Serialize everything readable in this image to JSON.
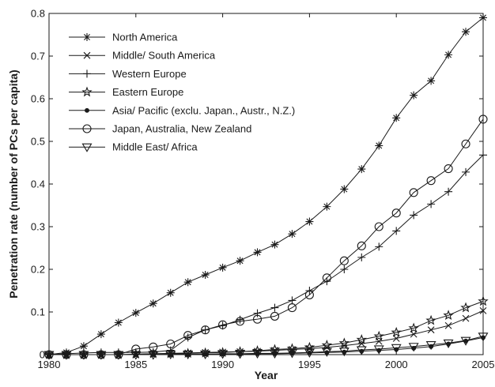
{
  "chart_data": {
    "type": "line",
    "title": "",
    "xlabel": "Year",
    "ylabel": "Penetration rate (number of PCs per capita)",
    "xlim": [
      1980,
      2005
    ],
    "ylim": [
      0,
      0.8
    ],
    "xticks": [
      "1980",
      "1985",
      "1990",
      "1995",
      "2000",
      "2005"
    ],
    "yticks": [
      "0",
      "0.1",
      "0.2",
      "0.3",
      "0.4",
      "0.5",
      "0.6",
      "0.7",
      "0.8"
    ],
    "grid": false,
    "legend_position": "top-left",
    "line_color": "#1a1a1a",
    "x": [
      1980,
      1981,
      1982,
      1983,
      1984,
      1985,
      1986,
      1987,
      1988,
      1989,
      1990,
      1991,
      1992,
      1993,
      1994,
      1995,
      1996,
      1997,
      1998,
      1999,
      2000,
      2001,
      2002,
      2003,
      2004,
      2005
    ],
    "series": [
      {
        "name": "North America",
        "marker": "asterisk",
        "values": [
          0,
          0.005,
          0.02,
          0.048,
          0.075,
          0.098,
          0.12,
          0.145,
          0.17,
          0.187,
          0.204,
          0.22,
          0.24,
          0.258,
          0.283,
          0.312,
          0.347,
          0.388,
          0.435,
          0.49,
          0.555,
          0.608,
          0.642,
          0.703,
          0.757,
          0.79
        ]
      },
      {
        "name": "Middle/ South America",
        "marker": "x",
        "values": [
          0,
          0,
          0,
          0,
          0,
          0.001,
          0.002,
          0.003,
          0.004,
          0.005,
          0.006,
          0.007,
          0.008,
          0.01,
          0.012,
          0.014,
          0.017,
          0.021,
          0.026,
          0.031,
          0.038,
          0.048,
          0.058,
          0.068,
          0.085,
          0.103
        ]
      },
      {
        "name": "Western Europe",
        "marker": "plus",
        "values": [
          0,
          0.002,
          0.004,
          0.005,
          0.005,
          0.005,
          0.006,
          0.01,
          0.04,
          0.058,
          0.068,
          0.082,
          0.097,
          0.11,
          0.127,
          0.15,
          0.172,
          0.2,
          0.228,
          0.253,
          0.29,
          0.327,
          0.353,
          0.382,
          0.428,
          0.468
        ]
      },
      {
        "name": "Eastern Europe",
        "marker": "star",
        "values": [
          0,
          0,
          0,
          0,
          0,
          0.001,
          0.002,
          0.002,
          0.003,
          0.004,
          0.005,
          0.007,
          0.009,
          0.012,
          0.014,
          0.017,
          0.022,
          0.027,
          0.035,
          0.043,
          0.052,
          0.062,
          0.08,
          0.092,
          0.11,
          0.125
        ]
      },
      {
        "name": "Asia/ Pacific (exclu. Japan., Austr., N.Z.)",
        "marker": "dot",
        "values": [
          0,
          0,
          0,
          0,
          0,
          0,
          0,
          0,
          0,
          0.001,
          0.001,
          0.001,
          0.002,
          0.002,
          0.003,
          0.004,
          0.005,
          0.006,
          0.008,
          0.01,
          0.012,
          0.015,
          0.019,
          0.025,
          0.032,
          0.04
        ]
      },
      {
        "name": "Japan, Australia, New Zealand",
        "marker": "circle",
        "values": [
          0,
          0,
          0,
          0,
          0,
          0.013,
          0.018,
          0.025,
          0.045,
          0.058,
          0.07,
          0.078,
          0.083,
          0.09,
          0.11,
          0.14,
          0.18,
          0.22,
          0.255,
          0.3,
          0.332,
          0.38,
          0.408,
          0.436,
          0.494,
          0.552
        ]
      },
      {
        "name": "Middle East/ Africa",
        "marker": "triangle-down",
        "values": [
          0,
          0,
          0,
          0,
          0,
          0,
          0,
          0.001,
          0.001,
          0.001,
          0.002,
          0.002,
          0.003,
          0.003,
          0.004,
          0.005,
          0.007,
          0.008,
          0.011,
          0.013,
          0.016,
          0.019,
          0.023,
          0.027,
          0.033,
          0.043
        ]
      }
    ]
  }
}
